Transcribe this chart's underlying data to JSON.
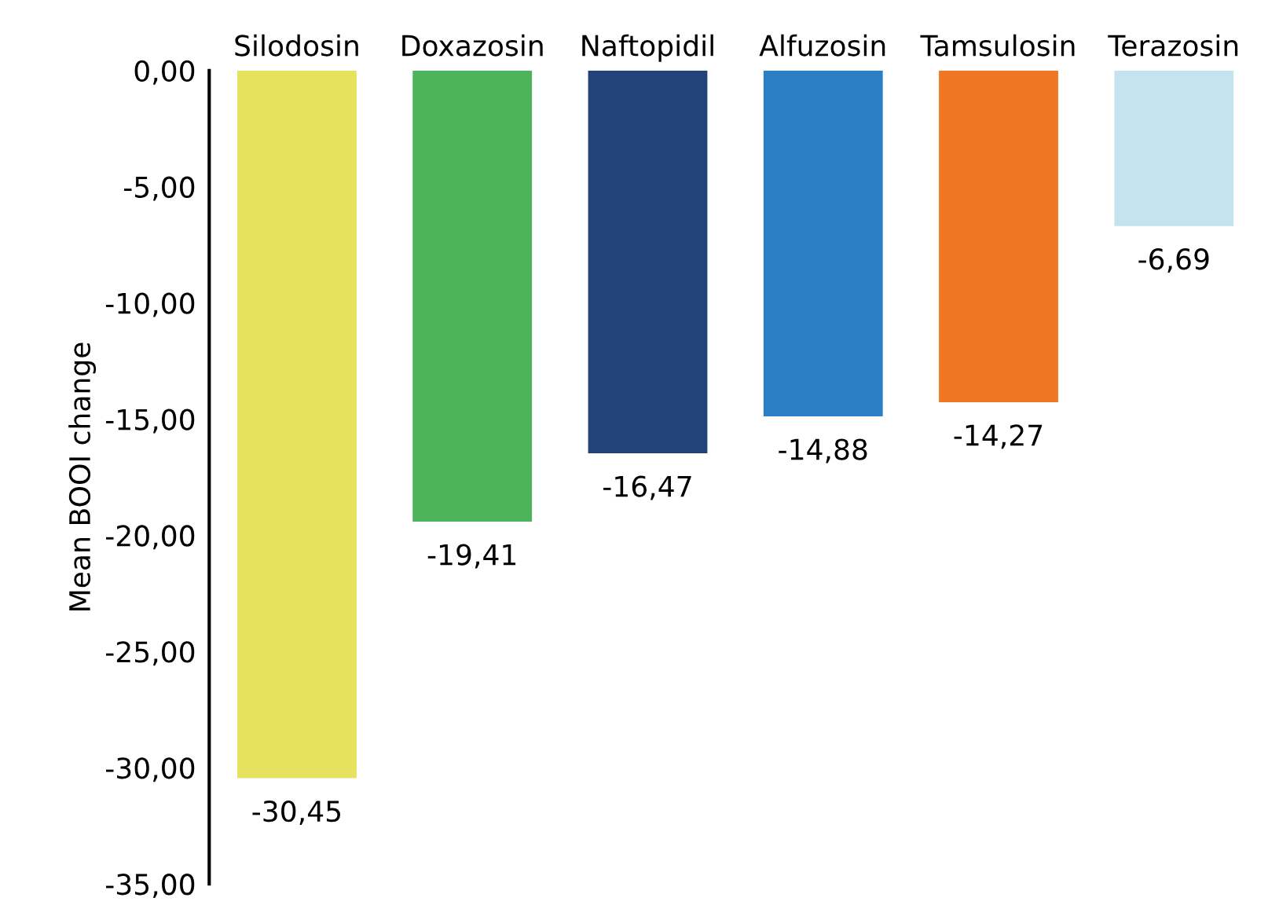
{
  "chart_data": {
    "type": "bar",
    "ylabel": "Mean BOOI change",
    "categories": [
      "Silodosin",
      "Doxazosin",
      "Naftopidil",
      "Alfuzosin",
      "Tamsulosin",
      "Terazosin"
    ],
    "values": [
      -30.45,
      -19.41,
      -16.47,
      -14.88,
      -14.27,
      -6.69
    ],
    "colors": [
      "#e6e25e",
      "#4db35a",
      "#22437a",
      "#2c7fc5",
      "#ef7622",
      "#c5e3ef"
    ],
    "value_labels": [
      "-30,45",
      "-19,41",
      "-16,47",
      "-14,88",
      "-14,27",
      "-6,69"
    ],
    "ylim": [
      -35,
      0
    ],
    "yticks": [
      {
        "value": 0,
        "label": "0,00"
      },
      {
        "value": -5,
        "label": "-5,00"
      },
      {
        "value": -10,
        "label": "-10,00"
      },
      {
        "value": -15,
        "label": "-15,00"
      },
      {
        "value": -20,
        "label": "-20,00"
      },
      {
        "value": -25,
        "label": "-25,00"
      },
      {
        "value": -30,
        "label": "-30,00"
      },
      {
        "value": -35,
        "label": "-35,00"
      }
    ],
    "grid": false,
    "legend": false
  }
}
